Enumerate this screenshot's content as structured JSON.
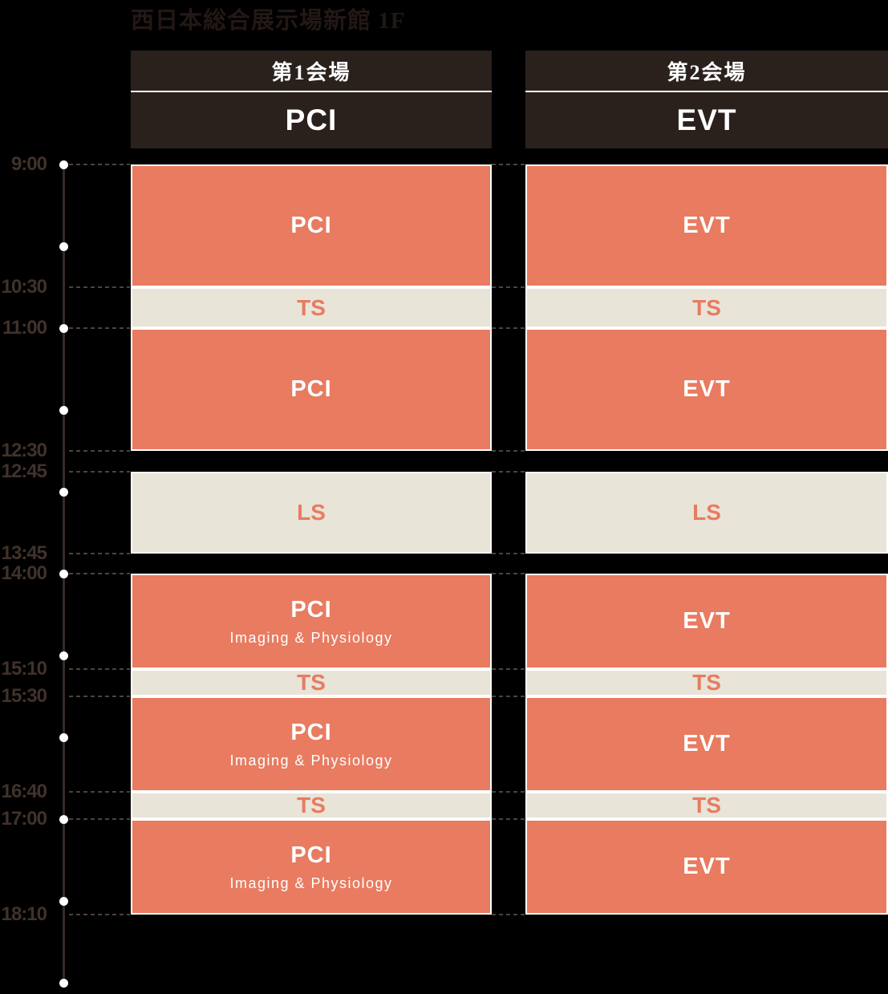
{
  "title": "西日本総合展示場新館 1F",
  "colors": {
    "background": "#000000",
    "session_main": "#E87B60",
    "session_sub": "#E8E4D8",
    "header_bg": "#2A211D",
    "header_text": "#FFFFFF",
    "block_border": "#FFFFFF",
    "title_text": "#231815",
    "time_label_text": "#40322B",
    "timeline_line": "#362B26",
    "timeline_dot": "#FFFFFF",
    "dash_line": "#4E423B"
  },
  "timeline": {
    "start": "9:00",
    "end": "19:00",
    "dot_hours": [
      9,
      10,
      11,
      12,
      13,
      14,
      15,
      16,
      17,
      18,
      19
    ],
    "labels": [
      "9:00",
      "10:30",
      "11:00",
      "12:30",
      "12:45",
      "13:45",
      "14:00",
      "15:10",
      "15:30",
      "16:40",
      "17:00",
      "18:10"
    ]
  },
  "venues": [
    {
      "name": "第1会場",
      "category": "PCI",
      "sessions": [
        {
          "start": "9:00",
          "end": "10:30",
          "type": "main",
          "label": "PCI"
        },
        {
          "start": "10:30",
          "end": "11:00",
          "type": "sub",
          "label": "TS"
        },
        {
          "start": "11:00",
          "end": "12:30",
          "type": "main",
          "label": "PCI"
        },
        {
          "start": "12:45",
          "end": "13:45",
          "type": "sub",
          "label": "LS"
        },
        {
          "start": "14:00",
          "end": "15:10",
          "type": "main",
          "label": "PCI",
          "sublabel": "Imaging & Physiology"
        },
        {
          "start": "15:10",
          "end": "15:30",
          "type": "sub",
          "label": "TS"
        },
        {
          "start": "15:30",
          "end": "16:40",
          "type": "main",
          "label": "PCI",
          "sublabel": "Imaging & Physiology"
        },
        {
          "start": "16:40",
          "end": "17:00",
          "type": "sub",
          "label": "TS"
        },
        {
          "start": "17:00",
          "end": "18:10",
          "type": "main",
          "label": "PCI",
          "sublabel": "Imaging & Physiology"
        }
      ]
    },
    {
      "name": "第2会場",
      "category": "EVT",
      "sessions": [
        {
          "start": "9:00",
          "end": "10:30",
          "type": "main",
          "label": "EVT"
        },
        {
          "start": "10:30",
          "end": "11:00",
          "type": "sub",
          "label": "TS"
        },
        {
          "start": "11:00",
          "end": "12:30",
          "type": "main",
          "label": "EVT"
        },
        {
          "start": "12:45",
          "end": "13:45",
          "type": "sub",
          "label": "LS"
        },
        {
          "start": "14:00",
          "end": "15:10",
          "type": "main",
          "label": "EVT"
        },
        {
          "start": "15:10",
          "end": "15:30",
          "type": "sub",
          "label": "TS"
        },
        {
          "start": "15:30",
          "end": "16:40",
          "type": "main",
          "label": "EVT"
        },
        {
          "start": "16:40",
          "end": "17:00",
          "type": "sub",
          "label": "TS"
        },
        {
          "start": "17:00",
          "end": "18:10",
          "type": "main",
          "label": "EVT"
        }
      ]
    }
  ]
}
